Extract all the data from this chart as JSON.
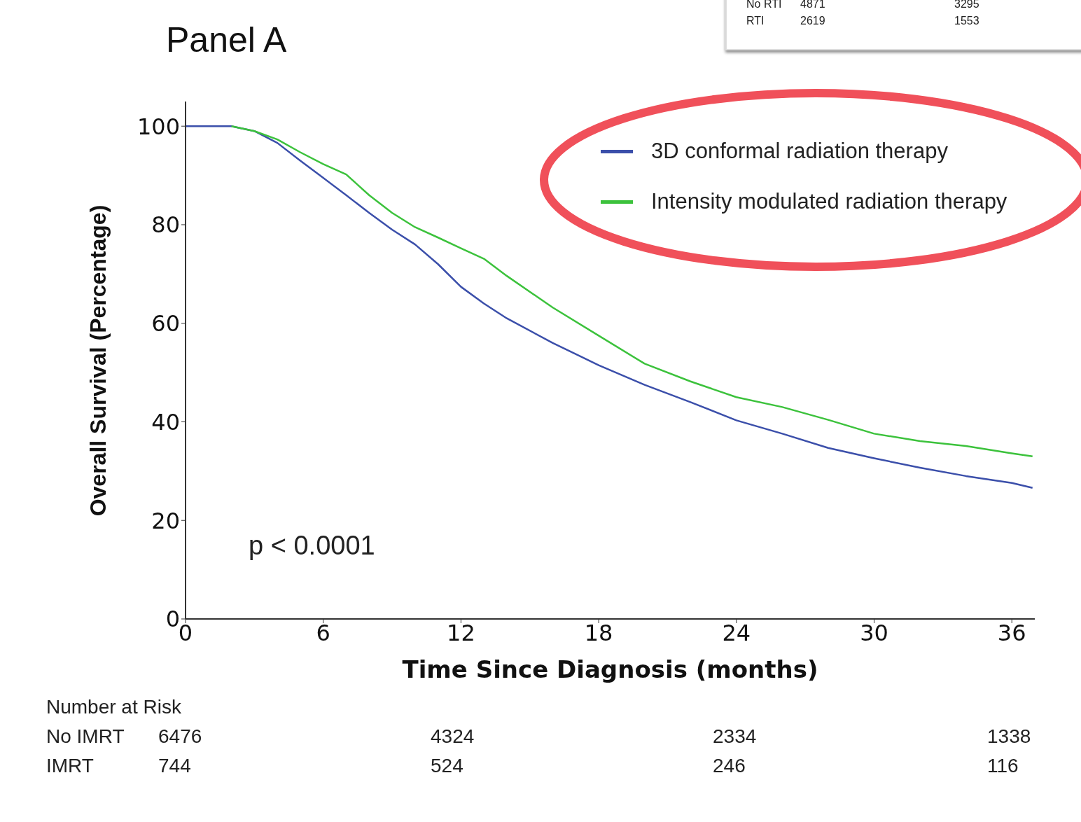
{
  "chart_data": {
    "type": "line",
    "title": "Panel A",
    "xlabel": "Time Since Diagnosis (months)",
    "ylabel": "Overall Survival (Percentage)",
    "xlim": [
      0,
      37
    ],
    "xticks": [
      0,
      6,
      12,
      18,
      24,
      30,
      36
    ],
    "ylim": [
      0,
      105
    ],
    "yticks": [
      0,
      20,
      40,
      60,
      80,
      100
    ],
    "legend": "top right",
    "grid": false,
    "marker": "none",
    "line_style": "solid",
    "series": [
      {
        "name": "3D conformal radiation therapy",
        "color": "#3b4faa",
        "x": [
          0,
          1,
          2,
          3,
          4,
          5,
          6,
          7,
          8,
          9,
          10,
          11,
          12,
          13,
          14,
          16,
          18,
          20,
          22,
          24,
          26,
          28,
          30,
          32,
          34,
          36,
          36.9
        ],
        "values": [
          100,
          100,
          100,
          99,
          96.6,
          93,
          89.5,
          86,
          82.4,
          79,
          76,
          72,
          67.4,
          64,
          61,
          56,
          51.5,
          47.5,
          44,
          40.3,
          37.6,
          34.7,
          32.6,
          30.7,
          29,
          27.6,
          26.6
        ]
      },
      {
        "name": "Intensity modulated radiation therapy",
        "color": "#3cc23c",
        "x": [
          2,
          3,
          4,
          5,
          6,
          7,
          8,
          9,
          10,
          11,
          12,
          13,
          14,
          16,
          18,
          20,
          22,
          24,
          26,
          28,
          30,
          32,
          34,
          36,
          36.9
        ],
        "values": [
          100,
          99,
          97.3,
          94.7,
          92.3,
          90.2,
          86,
          82.4,
          79.5,
          77.4,
          75.2,
          73.1,
          69.6,
          63.2,
          57.5,
          51.8,
          48.2,
          45,
          43,
          40.4,
          37.6,
          36.1,
          35.1,
          33.6,
          33
        ]
      }
    ],
    "annotations": [
      "p < 0.0001",
      "Number at Risk",
      "No IMRT",
      "6476",
      "4324",
      "2334",
      "1338",
      "IMRT",
      "744",
      "524",
      "246",
      "116",
      "No RTI",
      "4871",
      "3295",
      "RTI",
      "2619",
      "1553"
    ]
  }
}
